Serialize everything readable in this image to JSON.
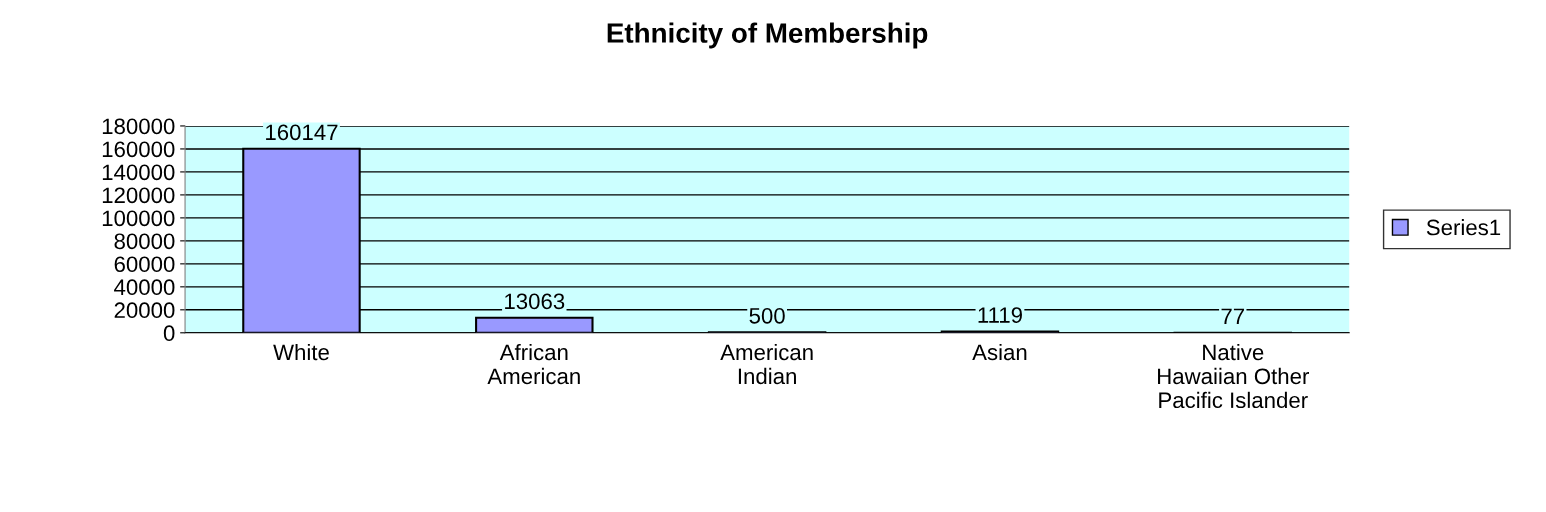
{
  "chart_data": {
    "type": "bar",
    "title": "Ethnicity of Membership",
    "categories": [
      "White",
      "African\nAmerican",
      "American\nIndian",
      "Asian",
      "Native\nHawaiian Other\nPacific Islander"
    ],
    "series": [
      {
        "name": "Series1",
        "color": "#9999ff",
        "values": [
          160147,
          13063,
          500,
          1119,
          77
        ]
      }
    ],
    "ylim": [
      0,
      180000
    ],
    "yticks": [
      0,
      20000,
      40000,
      60000,
      80000,
      100000,
      120000,
      140000,
      160000,
      180000
    ],
    "grid": "y",
    "legend": "right",
    "data_labels": true
  }
}
